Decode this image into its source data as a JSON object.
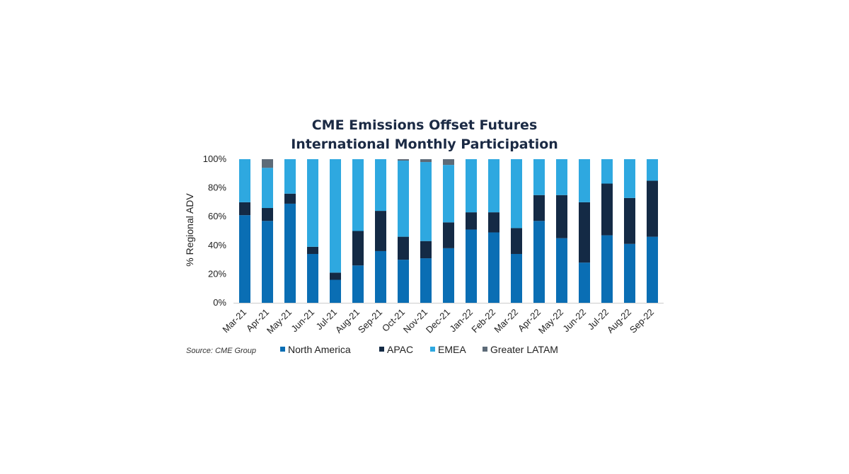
{
  "chart_data": {
    "type": "bar",
    "stacked": true,
    "title": "CME Emissions Offset Futures",
    "subtitle": "International Monthly Participation",
    "ylabel": "% Regional ADV",
    "xlabel": "",
    "ylim": [
      0,
      100
    ],
    "yticks": [
      "0%",
      "20%",
      "40%",
      "60%",
      "80%",
      "100%"
    ],
    "grid": false,
    "legend": "bottom",
    "source": "Source: CME Group",
    "categories": [
      "Mar-21",
      "Apr-21",
      "May-21",
      "Jun-21",
      "Jul-21",
      "Aug-21",
      "Sep-21",
      "Oct-21",
      "Nov-21",
      "Dec-21",
      "Jan-22",
      "Feb-22",
      "Mar-22",
      "Apr-22",
      "May-22",
      "Jun-22",
      "Jul-22",
      "Aug-22",
      "Sep-22"
    ],
    "series": [
      {
        "name": "North America",
        "color": "#0a6eb4",
        "values": [
          61,
          57,
          69,
          34,
          16,
          26,
          36,
          30,
          31,
          38,
          51,
          49,
          34,
          57,
          45,
          28,
          47,
          41,
          46
        ]
      },
      {
        "name": "APAC",
        "color": "#142a45",
        "values": [
          9,
          9,
          7,
          5,
          5,
          24,
          28,
          16,
          12,
          18,
          12,
          14,
          18,
          18,
          30,
          42,
          36,
          32,
          39
        ]
      },
      {
        "name": "EMEA",
        "color": "#2ea8e0",
        "values": [
          30,
          28,
          24,
          61,
          79,
          50,
          36,
          53,
          55,
          40,
          37,
          37,
          48,
          25,
          25,
          30,
          17,
          27,
          15
        ]
      },
      {
        "name": "Greater LATAM",
        "color": "#5d6b78",
        "values": [
          0,
          6,
          0,
          0,
          0,
          0,
          0,
          1,
          2,
          4,
          0,
          0,
          0,
          0,
          0,
          0,
          0,
          0,
          0
        ]
      }
    ]
  }
}
